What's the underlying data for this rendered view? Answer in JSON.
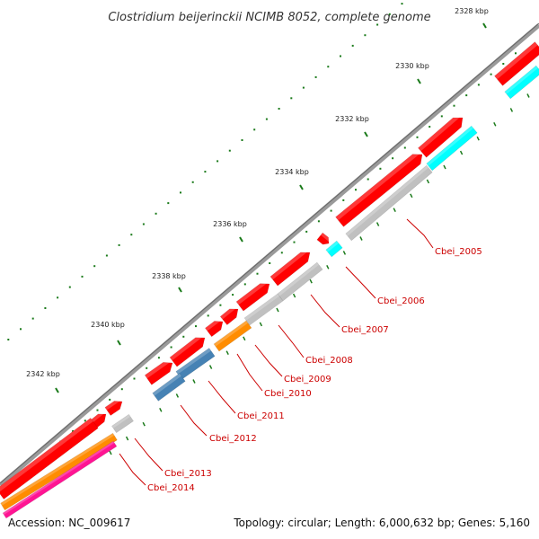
{
  "title": "Clostridium beijerinckii NCIMB 8052, complete genome",
  "footer": {
    "accession": "Accession: NC_009617",
    "summary": "Topology: circular; Length: 6,000,632 bp; Genes: 5,160"
  },
  "colors": {
    "backbone": "#808080",
    "forward_cds": "#ff0000",
    "tick_major": "#1a7a1a",
    "tick_minor": "#1a7a1a",
    "label": "#cc0000"
  },
  "kbp_labels": [
    "2328 kbp",
    "2330 kbp",
    "2332 kbp",
    "2334 kbp",
    "2336 kbp",
    "2338 kbp",
    "2340 kbp",
    "2342 kbp"
  ],
  "gene_labels": [
    "Cbei_2005",
    "Cbei_2006",
    "Cbei_2007",
    "Cbei_2008",
    "Cbei_2009",
    "Cbei_2010",
    "Cbei_2011",
    "Cbei_2012",
    "Cbei_2013",
    "Cbei_2014"
  ],
  "cog_colors": [
    "#ff0000",
    "#c0c0c0",
    "#00ffff",
    "#ff8c00",
    "#4682b4",
    "#ff1493"
  ]
}
